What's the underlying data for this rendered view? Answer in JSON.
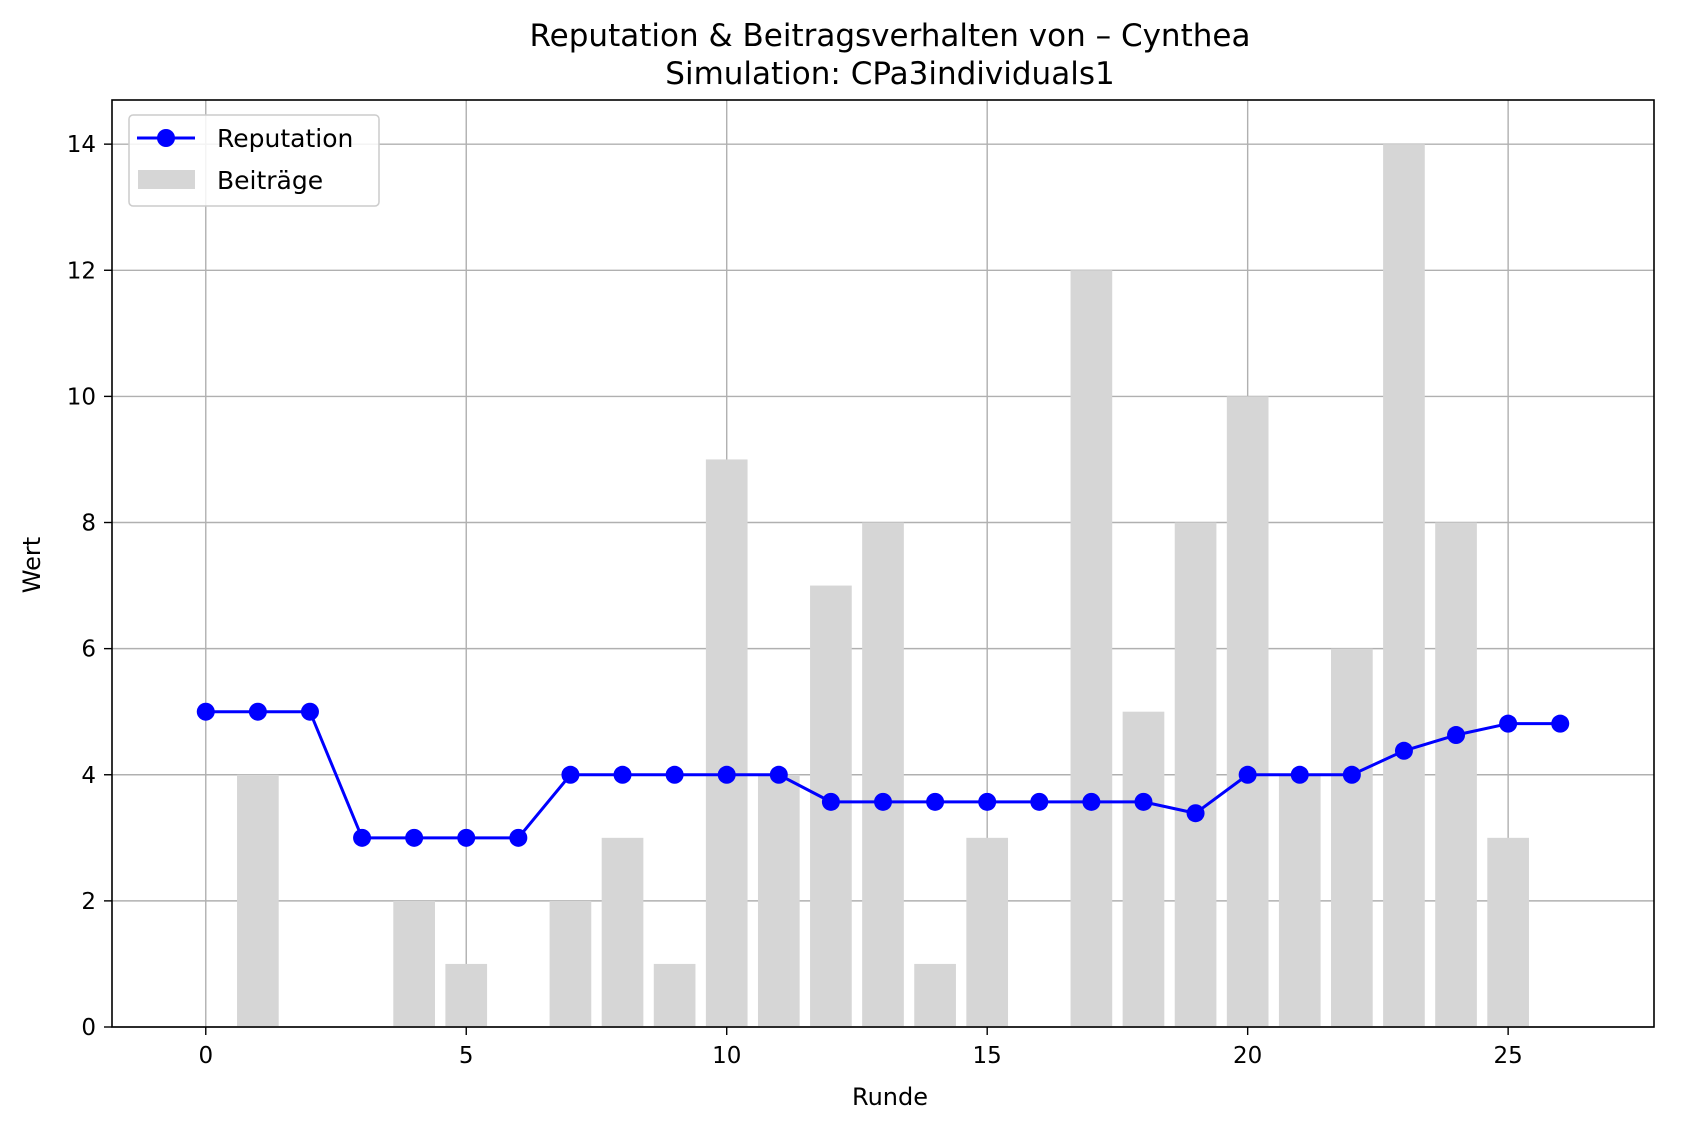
{
  "chart_data": {
    "type": "bar+line",
    "title": "Reputation & Beitragsverhalten von – Cynthea",
    "subtitle": "Simulation: CPa3individuals1",
    "xlabel": "Runde",
    "ylabel": "Wert",
    "xlim": [
      -1.8,
      27.8
    ],
    "ylim": [
      0,
      14.7
    ],
    "xticks": [
      0,
      5,
      10,
      15,
      20,
      25
    ],
    "yticks": [
      0,
      2,
      4,
      6,
      8,
      10,
      12,
      14
    ],
    "grid": true,
    "legend_position": "top-left",
    "series": [
      {
        "name": "Reputation",
        "kind": "line",
        "color": "#0000ff",
        "x": [
          0,
          1,
          2,
          3,
          4,
          5,
          6,
          7,
          8,
          9,
          10,
          11,
          12,
          13,
          14,
          15,
          16,
          17,
          18,
          19,
          20,
          21,
          22,
          23,
          24,
          25,
          26
        ],
        "values": [
          5,
          5,
          5,
          3,
          3,
          3,
          3,
          4,
          4,
          4,
          4,
          4,
          3.57,
          3.57,
          3.57,
          3.57,
          3.57,
          3.57,
          3.57,
          3.39,
          4,
          4,
          4,
          4.38,
          4.63,
          4.81,
          4.81
        ]
      },
      {
        "name": "Beiträge",
        "kind": "bar",
        "color": "#d6d6d6",
        "x": [
          1,
          4,
          5,
          7,
          8,
          9,
          10,
          11,
          12,
          13,
          14,
          15,
          17,
          18,
          19,
          20,
          21,
          22,
          23,
          24,
          25
        ],
        "values": [
          4,
          2,
          1,
          2,
          3,
          1,
          9,
          4,
          7,
          8,
          1,
          3,
          12,
          5,
          8,
          10,
          4,
          6,
          14,
          8,
          3
        ]
      }
    ]
  }
}
